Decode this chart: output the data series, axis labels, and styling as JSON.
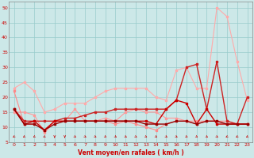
{
  "xlabel": "Vent moyen/en rafales ( km/h )",
  "xlim": [
    -0.5,
    23.5
  ],
  "ylim": [
    5,
    52
  ],
  "yticks": [
    5,
    10,
    15,
    20,
    25,
    30,
    35,
    40,
    45,
    50
  ],
  "xticks": [
    0,
    1,
    2,
    3,
    4,
    5,
    6,
    7,
    8,
    9,
    10,
    11,
    12,
    13,
    14,
    15,
    16,
    17,
    18,
    19,
    20,
    21,
    22,
    23
  ],
  "bg_color": "#cce8e8",
  "grid_color": "#99cccc",
  "series": [
    {
      "x": [
        0,
        1,
        2,
        3,
        4,
        5,
        6,
        7,
        8,
        9,
        10,
        11,
        12,
        13,
        14,
        15,
        16,
        17,
        18,
        19,
        20,
        21,
        22,
        23
      ],
      "y": [
        23,
        25,
        22,
        15,
        16,
        18,
        18,
        18,
        20,
        22,
        23,
        23,
        23,
        23,
        20,
        19,
        29,
        30,
        23,
        23,
        50,
        47,
        32,
        19
      ],
      "color": "#ffaaaa",
      "lw": 0.8,
      "marker": "s",
      "ms": 1.8
    },
    {
      "x": [
        0,
        1,
        2,
        3,
        4,
        5,
        6,
        7,
        8,
        9,
        10,
        11,
        12,
        13,
        14,
        15,
        16,
        17,
        18,
        19,
        20,
        21,
        22,
        23
      ],
      "y": [
        15,
        15,
        14,
        8,
        12,
        12,
        16,
        12,
        12,
        13,
        12,
        15,
        16,
        15,
        15,
        13,
        13,
        12,
        12,
        12,
        12,
        11,
        11,
        11
      ],
      "color": "#ff9999",
      "lw": 0.8,
      "marker": "s",
      "ms": 1.8
    },
    {
      "x": [
        0,
        1,
        2,
        3,
        4,
        5,
        6,
        7,
        8,
        9,
        10,
        11,
        12,
        13,
        14,
        15,
        16,
        17,
        18,
        19,
        20,
        21,
        22,
        23
      ],
      "y": [
        22,
        11,
        11,
        9,
        12,
        12,
        12,
        12,
        12,
        12,
        11,
        12,
        11,
        10,
        9,
        11,
        12,
        12,
        11,
        12,
        12,
        12,
        11,
        11
      ],
      "color": "#ff8888",
      "lw": 0.8,
      "marker": "s",
      "ms": 1.8
    },
    {
      "x": [
        0,
        1,
        2,
        3,
        4,
        5,
        6,
        7,
        8,
        9,
        10,
        11,
        12,
        13,
        14,
        15,
        16,
        17,
        18,
        19,
        20,
        21,
        22,
        23
      ],
      "y": [
        16,
        12,
        12,
        12,
        12,
        13,
        13,
        14,
        15,
        15,
        16,
        16,
        16,
        16,
        16,
        16,
        19,
        30,
        31,
        16,
        32,
        12,
        11,
        20
      ],
      "color": "#cc2222",
      "lw": 1.0,
      "marker": "s",
      "ms": 2.0
    },
    {
      "x": [
        0,
        1,
        2,
        3,
        4,
        5,
        6,
        7,
        8,
        9,
        10,
        11,
        12,
        13,
        14,
        15,
        16,
        17,
        18,
        19,
        20,
        21,
        22,
        23
      ],
      "y": [
        16,
        11,
        12,
        9,
        12,
        12,
        12,
        12,
        12,
        12,
        12,
        12,
        12,
        12,
        11,
        16,
        19,
        18,
        11,
        16,
        11,
        11,
        11,
        11
      ],
      "color": "#cc0000",
      "lw": 1.0,
      "marker": "s",
      "ms": 2.0
    },
    {
      "x": [
        0,
        1,
        2,
        3,
        4,
        5,
        6,
        7,
        8,
        9,
        10,
        11,
        12,
        13,
        14,
        15,
        16,
        17,
        18,
        19,
        20,
        21,
        22,
        23
      ],
      "y": [
        16,
        11,
        11,
        9,
        11,
        12,
        12,
        12,
        12,
        12,
        12,
        12,
        12,
        11,
        11,
        11,
        12,
        12,
        11,
        12,
        12,
        11,
        11,
        11
      ],
      "color": "#990000",
      "lw": 1.0,
      "marker": "s",
      "ms": 2.0
    }
  ],
  "arrow_angles": [
    225,
    225,
    225,
    225,
    270,
    270,
    315,
    315,
    315,
    315,
    315,
    315,
    315,
    315,
    315,
    315,
    315,
    315,
    315,
    315,
    315,
    225,
    225,
    225
  ]
}
